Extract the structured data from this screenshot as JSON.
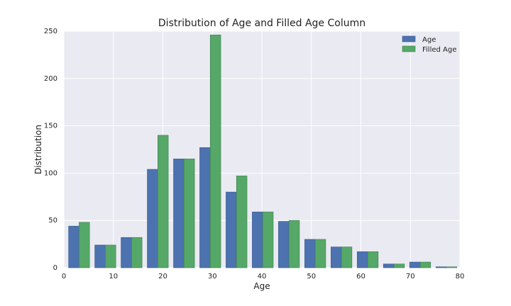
{
  "chart_data": {
    "type": "bar",
    "title": "Distribution of Age and Filled Age Column",
    "xlabel": "Age",
    "ylabel": "Distribution",
    "xlim": [
      0,
      80
    ],
    "ylim": [
      0,
      250
    ],
    "xticks": [
      0,
      10,
      20,
      30,
      40,
      50,
      60,
      70,
      80
    ],
    "yticks": [
      0,
      50,
      100,
      150,
      200,
      250
    ],
    "bin_edges": [
      0.42,
      5.72,
      11.02,
      16.32,
      21.62,
      26.92,
      32.22,
      37.52,
      42.82,
      48.12,
      53.42,
      58.72,
      64.02,
      69.32,
      74.62,
      79.92
    ],
    "grid": true,
    "legend_position": "top-right",
    "series": [
      {
        "name": "Age",
        "color": "#4c72b0",
        "values": [
          44,
          24,
          32,
          104,
          115,
          127,
          80,
          59,
          49,
          30,
          22,
          17,
          4,
          6,
          1
        ]
      },
      {
        "name": "Filled Age",
        "color": "#55a868",
        "values": [
          48,
          24,
          32,
          140,
          115,
          246,
          97,
          59,
          50,
          30,
          22,
          17,
          4,
          6,
          1
        ]
      }
    ]
  }
}
